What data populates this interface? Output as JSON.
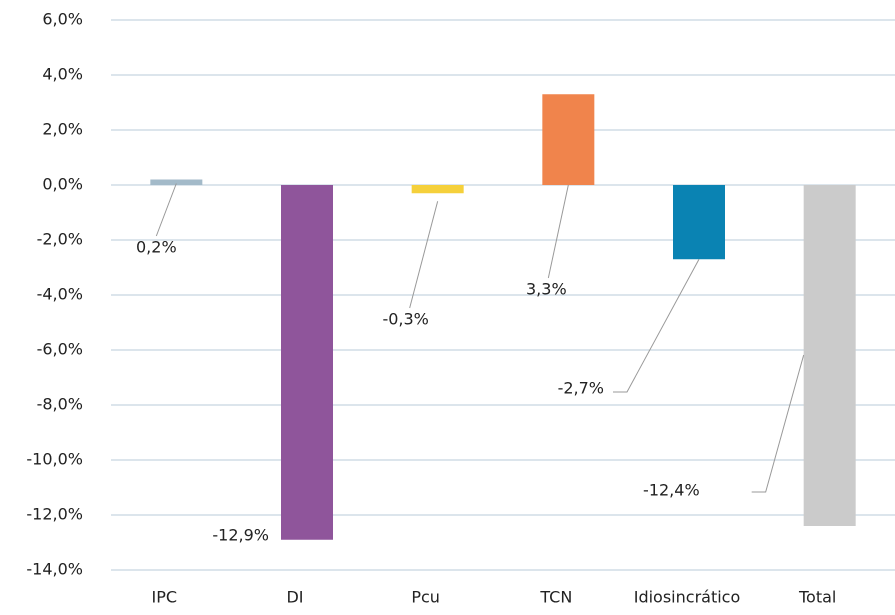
{
  "chart_data": {
    "type": "bar",
    "categories": [
      "IPC",
      "DI",
      "Pcu",
      "TCN",
      "Idiosincrático",
      "Total"
    ],
    "values": [
      0.2,
      -12.9,
      -0.3,
      3.3,
      -2.7,
      -12.4
    ],
    "value_labels": [
      "0,2%",
      "-12,9%",
      "-0,3%",
      "3,3%",
      "-2,7%",
      "-12,4%"
    ],
    "colors": [
      "#a3bac9",
      "#8f559b",
      "#f5d03b",
      "#f0844c",
      "#0a83b3",
      "#cbcbcb"
    ],
    "ylim": [
      -14,
      6
    ],
    "yticks": [
      {
        "value": -14,
        "label": "-14,0%"
      },
      {
        "value": -12,
        "label": "-12,0%"
      },
      {
        "value": -10,
        "label": "-10,0%"
      },
      {
        "value": -8,
        "label": "-8,0%"
      },
      {
        "value": -6,
        "label": "-6,0%"
      },
      {
        "value": -4,
        "label": "-4,0%"
      },
      {
        "value": -2,
        "label": "-2,0%"
      },
      {
        "value": 0,
        "label": "0,0%"
      },
      {
        "value": 2,
        "label": "2,0%"
      },
      {
        "value": 4,
        "label": "4,0%"
      },
      {
        "value": 6,
        "label": "6,0%"
      }
    ],
    "grid": true
  }
}
